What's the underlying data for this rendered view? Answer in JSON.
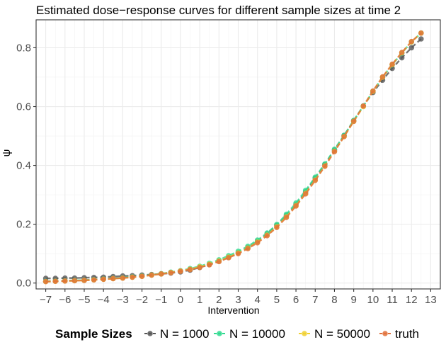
{
  "chart_data": {
    "type": "line",
    "title": "Estimated dose−response curves for different sample sizes at time 2",
    "xlabel": "Intervention",
    "ylabel": "ψ",
    "xlim": [
      -7.5,
      13.5
    ],
    "ylim": [
      -0.02,
      0.895
    ],
    "x_ticks": [
      -7,
      -6,
      -5,
      -4,
      -3,
      -2,
      -1,
      0,
      1,
      2,
      3,
      4,
      5,
      6,
      7,
      8,
      9,
      10,
      11,
      12,
      13
    ],
    "x_tick_labels": [
      "−7",
      "−6",
      "−5",
      "−4",
      "−3",
      "−2",
      "−1",
      "0",
      "1",
      "2",
      "3",
      "4",
      "5",
      "6",
      "7",
      "8",
      "9",
      "10",
      "11",
      "12",
      "13"
    ],
    "y_ticks": [
      0.0,
      0.2,
      0.4,
      0.6,
      0.8
    ],
    "y_tick_labels": [
      "0.0",
      "0.2",
      "0.4",
      "0.6",
      "0.8"
    ],
    "grid": true,
    "legend_title": "Sample Sizes",
    "legend_position": "bottom",
    "x": [
      -7,
      -6.5,
      -6,
      -5.5,
      -5,
      -4.5,
      -4,
      -3.5,
      -3,
      -2.5,
      -2,
      -1.5,
      -1,
      -0.5,
      0,
      0.5,
      1,
      1.5,
      2,
      2.5,
      3,
      3.5,
      4,
      4.5,
      5,
      5.5,
      6,
      6.5,
      7,
      7.5,
      8,
      8.5,
      9,
      9.5,
      10,
      10.5,
      11,
      11.5,
      12,
      12.5
    ],
    "series": [
      {
        "name": "N = 1000",
        "color": "#555555",
        "values": [
          0.016,
          0.016,
          0.017,
          0.017,
          0.018,
          0.019,
          0.02,
          0.022,
          0.024,
          0.025,
          0.027,
          0.029,
          0.031,
          0.034,
          0.038,
          0.044,
          0.053,
          0.063,
          0.075,
          0.088,
          0.103,
          0.121,
          0.142,
          0.167,
          0.196,
          0.229,
          0.267,
          0.31,
          0.357,
          0.403,
          0.452,
          0.502,
          0.552,
          0.602,
          0.648,
          0.69,
          0.73,
          0.766,
          0.8,
          0.83
        ]
      },
      {
        "name": "N = 10000",
        "color": "#2fd98f",
        "values": [
          0.006,
          0.007,
          0.008,
          0.009,
          0.01,
          0.012,
          0.014,
          0.016,
          0.018,
          0.021,
          0.024,
          0.028,
          0.032,
          0.037,
          0.042,
          0.049,
          0.057,
          0.067,
          0.079,
          0.093,
          0.108,
          0.125,
          0.146,
          0.17,
          0.199,
          0.234,
          0.272,
          0.315,
          0.36,
          0.405,
          0.455,
          0.502,
          0.553,
          0.602,
          0.652,
          0.7,
          0.742,
          0.782,
          0.82,
          0.85
        ]
      },
      {
        "name": "N = 50000",
        "color": "#f0d030",
        "values": [
          0.005,
          0.006,
          0.007,
          0.008,
          0.009,
          0.011,
          0.013,
          0.015,
          0.017,
          0.02,
          0.023,
          0.027,
          0.031,
          0.036,
          0.041,
          0.047,
          0.055,
          0.064,
          0.075,
          0.088,
          0.102,
          0.119,
          0.139,
          0.163,
          0.191,
          0.225,
          0.263,
          0.305,
          0.35,
          0.398,
          0.448,
          0.498,
          0.55,
          0.6,
          0.652,
          0.7,
          0.743,
          0.783,
          0.82,
          0.85
        ]
      },
      {
        "name": "truth",
        "color": "#e0703a",
        "values": [
          0.005,
          0.006,
          0.007,
          0.008,
          0.009,
          0.011,
          0.013,
          0.015,
          0.017,
          0.02,
          0.023,
          0.027,
          0.031,
          0.035,
          0.04,
          0.046,
          0.053,
          0.062,
          0.073,
          0.086,
          0.1,
          0.117,
          0.137,
          0.161,
          0.189,
          0.223,
          0.262,
          0.303,
          0.349,
          0.397,
          0.447,
          0.498,
          0.55,
          0.602,
          0.653,
          0.701,
          0.744,
          0.784,
          0.821,
          0.85
        ]
      }
    ]
  }
}
